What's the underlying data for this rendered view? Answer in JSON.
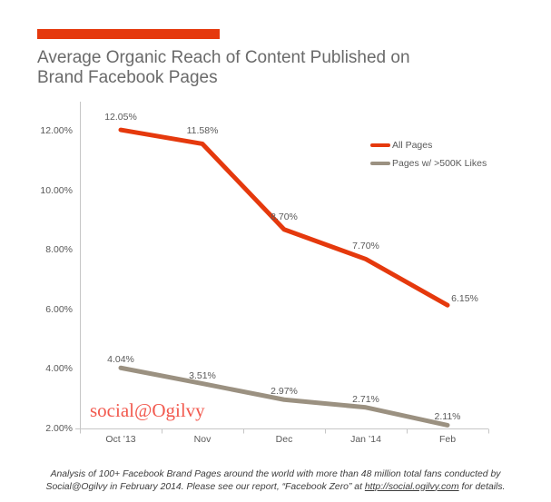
{
  "page": {
    "background": "#FFFFFF"
  },
  "header": {
    "accent_bar_color": "#E5390D",
    "title_line1": "Average Organic Reach of Content Published on",
    "title_line2": "Brand Facebook Pages"
  },
  "legend": {
    "items": [
      {
        "label": "All Pages",
        "color": "#E5390D"
      },
      {
        "label": "Pages w/ >500K Likes",
        "color": "#9B9181"
      }
    ]
  },
  "watermark": {
    "text": "social@Ogilvy",
    "color": "#F2594E"
  },
  "footer": {
    "line1": "Analysis of 100+ Facebook Brand Pages around the world with more than 48 million total fans conducted by",
    "line2_before": "Social@Ogilvy in February 2014. Please see our report, “Facebook Zero” at ",
    "link_text": "http://social.ogilvy.com",
    "line2_after": " for details."
  },
  "chart_data": {
    "type": "line",
    "title": "Average Organic Reach of Content Published on Brand Facebook Pages",
    "categories": [
      "Oct ’13",
      "Nov",
      "Dec",
      "Jan ’14",
      "Feb"
    ],
    "series": [
      {
        "name": "All Pages",
        "color": "#E5390D",
        "values": [
          12.05,
          11.58,
          8.7,
          7.7,
          6.15
        ],
        "labels": [
          "12.05%",
          "11.58%",
          "8.70%",
          "7.70%",
          "6.15%"
        ]
      },
      {
        "name": "Pages w/ >500K Likes",
        "color": "#9B9181",
        "values": [
          4.04,
          3.51,
          2.97,
          2.71,
          2.11
        ],
        "labels": [
          "4.04%",
          "3.51%",
          "2.97%",
          "2.71%",
          "2.11%"
        ]
      }
    ],
    "y_axis": {
      "min": 2,
      "max": 13,
      "tick_values": [
        12,
        10,
        8,
        6,
        4,
        2
      ],
      "tick_labels": [
        "12.00%",
        "10.00%",
        "8.00%",
        "6.00%",
        "4.00%",
        "2.00%"
      ]
    },
    "xlabel": "",
    "ylabel": "",
    "grid": false,
    "legend_position": "top-right",
    "axis_color": "#C6C6C6",
    "label_color": "#595959"
  }
}
